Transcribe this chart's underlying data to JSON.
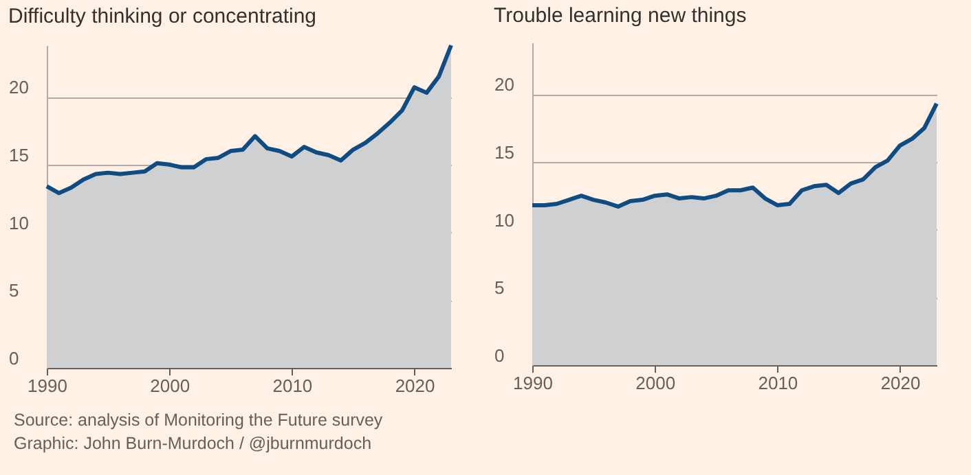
{
  "chart_data": [
    {
      "type": "area",
      "title": "Difficulty thinking or concentrating",
      "x": [
        1990,
        1991,
        1992,
        1993,
        1994,
        1995,
        1996,
        1997,
        1998,
        1999,
        2000,
        2001,
        2002,
        2003,
        2004,
        2005,
        2006,
        2007,
        2008,
        2009,
        2010,
        2011,
        2012,
        2013,
        2014,
        2015,
        2016,
        2017,
        2018,
        2019,
        2020,
        2021,
        2022,
        2023
      ],
      "series": [
        {
          "color": "#0f4c81",
          "values": [
            13.4,
            12.9,
            13.3,
            13.9,
            14.3,
            14.4,
            14.3,
            14.4,
            14.5,
            15.1,
            15.0,
            14.8,
            14.8,
            15.4,
            15.5,
            16.0,
            16.1,
            17.1,
            16.2,
            16.0,
            15.6,
            16.3,
            15.9,
            15.7,
            15.3,
            16.1,
            16.6,
            17.3,
            18.1,
            19.0,
            20.7,
            20.3,
            21.5,
            23.8
          ]
        }
      ],
      "xlim": [
        1990,
        2023
      ],
      "xticks": [
        1990,
        2000,
        2010,
        2020
      ],
      "ylim": [
        0,
        23.8
      ],
      "yticks": [
        0,
        5,
        10,
        15,
        20
      ],
      "grid": "y",
      "annotations": [
        "Source: analysis of Monitoring the Future survey",
        "Graphic: John Burn-Murdoch / @jburnmurdoch"
      ]
    },
    {
      "type": "area",
      "title": "Trouble learning new things",
      "x": [
        1990,
        1991,
        1992,
        1993,
        1994,
        1995,
        1996,
        1997,
        1998,
        1999,
        2000,
        2001,
        2002,
        2003,
        2004,
        2005,
        2006,
        2007,
        2008,
        2009,
        2010,
        2011,
        2012,
        2013,
        2014,
        2015,
        2016,
        2017,
        2018,
        2019,
        2020,
        2021,
        2022,
        2023
      ],
      "series": [
        {
          "color": "#0f4c81",
          "values": [
            11.8,
            11.8,
            11.9,
            12.2,
            12.5,
            12.2,
            12.0,
            11.7,
            12.1,
            12.2,
            12.5,
            12.6,
            12.3,
            12.4,
            12.3,
            12.5,
            12.9,
            12.9,
            13.1,
            12.3,
            11.8,
            11.9,
            12.9,
            13.2,
            13.3,
            12.7,
            13.4,
            13.7,
            14.6,
            15.1,
            16.2,
            16.7,
            17.5,
            19.3
          ]
        }
      ],
      "xlim": [
        1990,
        2023
      ],
      "xticks": [
        1990,
        2000,
        2010,
        2020
      ],
      "ylim": [
        0,
        23.8
      ],
      "yticks": [
        0,
        5,
        10,
        15,
        20
      ],
      "grid": "y"
    }
  ]
}
